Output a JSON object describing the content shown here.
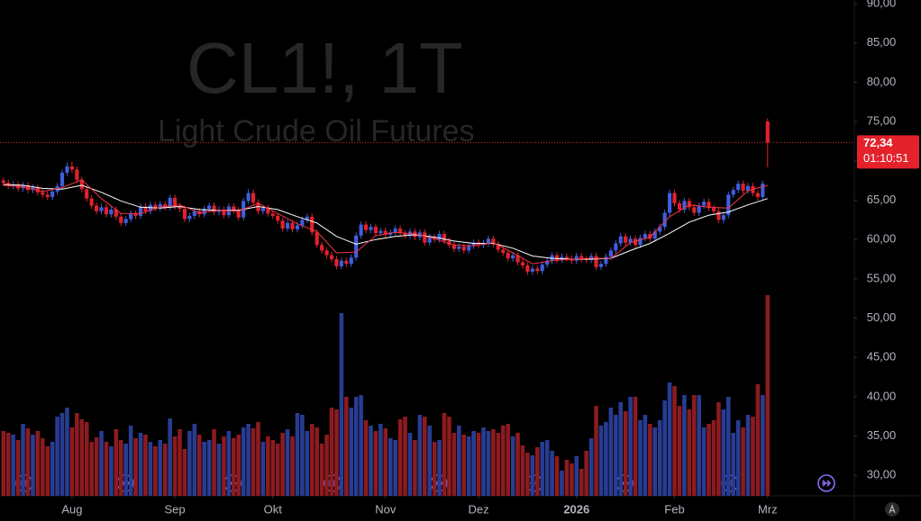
{
  "chart_data": {
    "type": "candlestick",
    "title": "CL1!, 1T",
    "subtitle": "Light Crude Oil Futures",
    "open": [
      67.5,
      67.2,
      66.8,
      67.0,
      66.5,
      66.9,
      66.3,
      66.6,
      66.0,
      65.7,
      65.4,
      66.1,
      66.8,
      68.5,
      69.3,
      68.9,
      67.6,
      66.4,
      65.2,
      64.3,
      63.6,
      64.1,
      63.2,
      63.8,
      62.9,
      62.1,
      62.6,
      63.3,
      63.0,
      64.2,
      63.6,
      64.4,
      64.0,
      64.5,
      64.1,
      65.3,
      64.2,
      63.9,
      62.6,
      63.0,
      63.6,
      63.2,
      63.9,
      64.3,
      63.5,
      63.8,
      63.1,
      64.2,
      63.7,
      62.8,
      64.9,
      65.9,
      64.7,
      63.6,
      64.0,
      63.3,
      63.0,
      62.4,
      61.4,
      62.1,
      61.3,
      61.8,
      62.5,
      62.9,
      60.9,
      59.3,
      58.6,
      58.0,
      57.5,
      56.6,
      57.3,
      56.9,
      57.7,
      60.5,
      61.9,
      61.2,
      61.6,
      60.8,
      61.1,
      60.6,
      60.9,
      61.4,
      60.8,
      60.5,
      61.0,
      60.3,
      60.9,
      59.6,
      60.3,
      60.0,
      60.7,
      59.8,
      59.3,
      58.8,
      59.1,
      58.6,
      59.2,
      59.6,
      59.3,
      59.5,
      60.1,
      59.4,
      58.7,
      58.3,
      57.6,
      58.0,
      57.1,
      56.7,
      55.9,
      56.3,
      56.0,
      56.8,
      57.3,
      58.0,
      57.4,
      57.8,
      57.6,
      57.3,
      57.9,
      57.5,
      57.4,
      57.9,
      56.5,
      56.9,
      57.8,
      58.6,
      59.5,
      60.4,
      59.6,
      60.1,
      59.3,
      60.2,
      60.7,
      60.1,
      61.0,
      61.6,
      63.4,
      65.9,
      64.6,
      63.8,
      64.9,
      64.1,
      63.4,
      64.3,
      64.8,
      64.0,
      63.6,
      62.5,
      63.1,
      65.7,
      66.3,
      67.1,
      66.2,
      66.8,
      65.9,
      65.4,
      75.0
    ],
    "high": [
      67.9,
      67.6,
      67.4,
      67.4,
      67.3,
      67.3,
      67.0,
      67.0,
      66.4,
      66.1,
      66.5,
      67.2,
      68.9,
      69.8,
      69.9,
      69.3,
      68.0,
      66.8,
      65.6,
      64.7,
      64.5,
      64.5,
      64.2,
      64.2,
      63.3,
      63.0,
      63.7,
      63.7,
      64.6,
      64.6,
      64.8,
      64.8,
      64.9,
      64.9,
      65.7,
      65.7,
      64.6,
      64.3,
      63.4,
      64.0,
      64.0,
      64.3,
      64.7,
      64.7,
      64.2,
      64.2,
      64.6,
      64.6,
      64.1,
      65.3,
      66.4,
      66.3,
      65.1,
      64.4,
      64.4,
      63.7,
      63.4,
      62.8,
      62.5,
      62.5,
      62.2,
      62.9,
      63.3,
      63.3,
      61.3,
      59.7,
      59.0,
      58.4,
      57.9,
      57.7,
      57.7,
      58.1,
      60.9,
      62.3,
      62.3,
      62.0,
      62.0,
      61.5,
      61.5,
      61.3,
      61.8,
      61.8,
      61.2,
      61.4,
      61.4,
      61.3,
      61.3,
      60.7,
      60.7,
      61.1,
      61.1,
      60.2,
      59.7,
      59.5,
      59.5,
      59.6,
      60.0,
      60.0,
      59.9,
      60.5,
      60.5,
      59.8,
      59.1,
      58.7,
      58.4,
      58.4,
      57.5,
      57.1,
      56.7,
      56.7,
      57.2,
      57.7,
      58.4,
      58.4,
      58.2,
      58.2,
      58.0,
      58.3,
      58.3,
      57.9,
      58.3,
      58.3,
      57.3,
      58.2,
      59.0,
      59.9,
      60.8,
      60.8,
      60.5,
      60.5,
      60.6,
      61.1,
      61.1,
      61.4,
      62.0,
      63.8,
      66.3,
      66.3,
      65.0,
      65.3,
      65.3,
      64.5,
      64.7,
      65.2,
      65.2,
      64.4,
      64.0,
      63.5,
      66.1,
      66.7,
      67.5,
      67.5,
      67.2,
      67.2,
      66.3,
      67.5,
      75.4
    ],
    "low": [
      66.8,
      66.4,
      66.4,
      66.1,
      66.1,
      65.9,
      65.9,
      65.6,
      65.3,
      65.0,
      65.0,
      65.7,
      66.4,
      68.1,
      68.5,
      67.2,
      66.0,
      64.8,
      63.9,
      63.2,
      63.2,
      62.8,
      62.8,
      62.5,
      61.7,
      61.7,
      62.2,
      62.6,
      62.6,
      63.2,
      63.2,
      63.6,
      63.6,
      63.7,
      63.7,
      63.8,
      63.5,
      62.2,
      62.2,
      62.6,
      62.8,
      62.8,
      63.5,
      63.1,
      63.1,
      62.7,
      62.7,
      63.3,
      62.4,
      62.4,
      64.5,
      64.3,
      63.2,
      63.2,
      62.9,
      62.6,
      62.0,
      61.0,
      61.0,
      60.9,
      60.9,
      61.4,
      62.1,
      60.5,
      58.9,
      58.2,
      57.6,
      57.1,
      56.2,
      56.2,
      56.5,
      56.5,
      57.3,
      60.1,
      60.8,
      60.8,
      60.4,
      60.4,
      60.2,
      60.2,
      60.5,
      60.4,
      60.1,
      60.1,
      59.9,
      59.9,
      59.2,
      59.2,
      59.6,
      59.6,
      59.4,
      58.9,
      58.4,
      58.4,
      58.2,
      58.2,
      58.8,
      58.9,
      58.9,
      59.1,
      59.0,
      58.3,
      57.9,
      57.2,
      57.2,
      56.7,
      56.3,
      55.5,
      55.5,
      55.6,
      55.6,
      56.4,
      56.9,
      57.0,
      57.0,
      57.2,
      56.9,
      56.9,
      57.1,
      57.0,
      57.0,
      56.1,
      56.1,
      56.5,
      57.4,
      58.2,
      59.1,
      59.2,
      59.2,
      58.9,
      58.9,
      59.8,
      59.7,
      59.7,
      60.6,
      61.2,
      63.0,
      64.2,
      63.4,
      63.4,
      63.7,
      63.0,
      63.0,
      63.9,
      63.6,
      63.2,
      62.1,
      62.1,
      62.7,
      65.3,
      65.9,
      65.8,
      65.8,
      65.5,
      65.0,
      65.0,
      69.2
    ],
    "close": [
      67.2,
      66.8,
      67.0,
      66.5,
      66.9,
      66.3,
      66.6,
      66.0,
      65.7,
      65.4,
      66.1,
      66.8,
      68.5,
      69.3,
      68.9,
      67.6,
      66.4,
      65.2,
      64.3,
      63.6,
      64.1,
      63.2,
      63.8,
      62.9,
      62.1,
      62.6,
      63.3,
      63.0,
      64.2,
      63.6,
      64.4,
      64.0,
      64.5,
      64.1,
      65.3,
      64.2,
      63.9,
      62.6,
      63.0,
      63.6,
      63.2,
      63.9,
      64.3,
      63.5,
      63.8,
      63.1,
      64.2,
      63.7,
      62.8,
      64.9,
      65.9,
      64.7,
      63.6,
      64.0,
      63.3,
      63.0,
      62.4,
      61.4,
      62.1,
      61.3,
      61.8,
      62.5,
      62.9,
      60.9,
      59.3,
      58.6,
      58.0,
      57.5,
      56.6,
      57.3,
      56.9,
      57.7,
      60.5,
      61.9,
      61.2,
      61.6,
      60.8,
      61.1,
      60.6,
      60.9,
      61.4,
      60.8,
      60.5,
      61.0,
      60.3,
      60.9,
      59.6,
      60.3,
      60.0,
      60.7,
      59.8,
      59.3,
      58.8,
      59.1,
      58.6,
      59.2,
      59.6,
      59.3,
      59.5,
      60.1,
      59.4,
      58.7,
      58.3,
      57.6,
      58.0,
      57.1,
      56.7,
      55.9,
      56.3,
      56.0,
      56.8,
      57.3,
      58.0,
      57.4,
      57.8,
      57.6,
      57.3,
      57.9,
      57.5,
      57.4,
      57.9,
      56.5,
      56.9,
      57.8,
      58.6,
      59.5,
      60.4,
      59.6,
      60.1,
      59.3,
      60.2,
      60.7,
      60.1,
      61.0,
      61.6,
      63.4,
      65.9,
      64.6,
      63.8,
      64.9,
      64.1,
      63.4,
      64.3,
      64.8,
      64.0,
      63.6,
      62.5,
      63.1,
      65.7,
      66.3,
      67.1,
      66.2,
      66.8,
      65.9,
      65.4,
      67.1,
      72.34
    ],
    "volume": [
      72,
      70,
      68,
      62,
      80,
      75,
      68,
      72,
      64,
      55,
      60,
      88,
      92,
      98,
      76,
      92,
      85,
      82,
      60,
      65,
      72,
      60,
      55,
      74,
      62,
      58,
      78,
      64,
      70,
      68,
      60,
      55,
      62,
      58,
      86,
      66,
      74,
      52,
      72,
      80,
      68,
      60,
      62,
      74,
      58,
      66,
      72,
      64,
      68,
      76,
      80,
      75,
      82,
      60,
      66,
      62,
      58,
      70,
      74,
      66,
      92,
      90,
      72,
      80,
      76,
      58,
      68,
      98,
      96,
      203,
      110,
      98,
      110,
      112,
      84,
      78,
      72,
      80,
      75,
      64,
      62,
      85,
      88,
      70,
      62,
      90,
      88,
      78,
      60,
      62,
      92,
      88,
      70,
      78,
      68,
      66,
      72,
      70,
      76,
      72,
      74,
      70,
      78,
      80,
      66,
      70,
      56,
      48,
      45,
      54,
      60,
      62,
      50,
      44,
      28,
      40,
      36,
      44,
      30,
      50,
      64,
      100,
      78,
      82,
      98,
      90,
      104,
      94,
      110,
      110,
      84,
      90,
      80,
      76,
      84,
      106,
      126,
      122,
      100,
      112,
      96,
      112,
      112,
      76,
      80,
      84,
      104,
      96,
      110,
      70,
      84,
      76,
      90,
      88,
      124,
      112,
      223
    ],
    "up_color": "#3f5fe0",
    "down_color": "#e3222c",
    "volume_up_color": "#283c92",
    "volume_down_color": "#8c1b1f",
    "xlim": [
      -0.7,
      173.7
    ],
    "xticks": [
      {
        "value": 14,
        "label": "Aug"
      },
      {
        "value": 35,
        "label": "Sep"
      },
      {
        "value": 55,
        "label": "Okt"
      },
      {
        "value": 78,
        "label": "Nov"
      },
      {
        "value": 97,
        "label": "Dez"
      },
      {
        "value": 117,
        "label": "2026"
      },
      {
        "value": 137,
        "label": "Feb"
      },
      {
        "value": 156,
        "label": "Mrz"
      }
    ],
    "ylim": [
      27.4,
      90.46
    ],
    "yticks": [
      {
        "value": 30,
        "label": "30,00"
      },
      {
        "value": 35,
        "label": "35,00"
      },
      {
        "value": 40,
        "label": "40,00"
      },
      {
        "value": 45,
        "label": "45,00"
      },
      {
        "value": 50,
        "label": "50,00"
      },
      {
        "value": 55,
        "label": "55,00"
      },
      {
        "value": 60,
        "label": "60,00"
      },
      {
        "value": 65,
        "label": "65,00"
      },
      {
        "value": 70,
        "label": "70,00"
      },
      {
        "value": 75,
        "label": "75,00"
      },
      {
        "value": 80,
        "label": "80,00"
      },
      {
        "value": 85,
        "label": "85,00"
      },
      {
        "value": 90,
        "label": "90,00"
      }
    ],
    "moving_averages": [
      {
        "color": "#ffffff",
        "x": [
          0,
          4,
          8,
          12,
          16,
          20,
          24,
          28,
          32,
          36,
          40,
          44,
          48,
          52,
          56,
          60,
          64,
          68,
          72,
          76,
          80,
          84,
          88,
          92,
          96,
          100,
          104,
          108,
          112,
          116,
          120,
          124,
          128,
          132,
          136,
          140,
          144,
          148,
          152,
          156
        ],
        "values": [
          67.0,
          66.9,
          66.5,
          66.4,
          66.9,
          66.0,
          64.9,
          64.1,
          64.0,
          64.2,
          63.8,
          63.7,
          63.7,
          64.2,
          63.8,
          62.9,
          62.1,
          60.4,
          59.4,
          60.0,
          60.4,
          60.6,
          60.3,
          59.8,
          59.5,
          59.5,
          58.9,
          57.9,
          57.6,
          57.5,
          57.5,
          57.6,
          58.6,
          59.5,
          60.8,
          62.2,
          63.1,
          63.5,
          64.4,
          65.2
        ]
      },
      {
        "color": "#f23645",
        "x": [
          0,
          4,
          8,
          12,
          16,
          20,
          24,
          28,
          32,
          36,
          40,
          44,
          48,
          52,
          56,
          60,
          64,
          68,
          72,
          76,
          80,
          84,
          88,
          92,
          96,
          100,
          104,
          108,
          112,
          116,
          120,
          124,
          128,
          132,
          136,
          140,
          144,
          148,
          152,
          156
        ],
        "values": [
          66.9,
          66.7,
          66.1,
          66.6,
          67.6,
          65.2,
          63.3,
          63.3,
          64.1,
          64.4,
          63.4,
          63.7,
          63.6,
          64.6,
          63.3,
          62.0,
          61.0,
          58.3,
          58.4,
          60.5,
          60.9,
          60.7,
          60.1,
          59.3,
          59.2,
          59.6,
          58.3,
          56.9,
          57.3,
          57.5,
          57.6,
          57.6,
          59.6,
          60.3,
          62.9,
          64.4,
          64.1,
          64.0,
          66.2,
          66.9
        ]
      }
    ],
    "last_price": {
      "value": 72.34,
      "label": "72,34"
    },
    "countdown": "01:10:51"
  }
}
